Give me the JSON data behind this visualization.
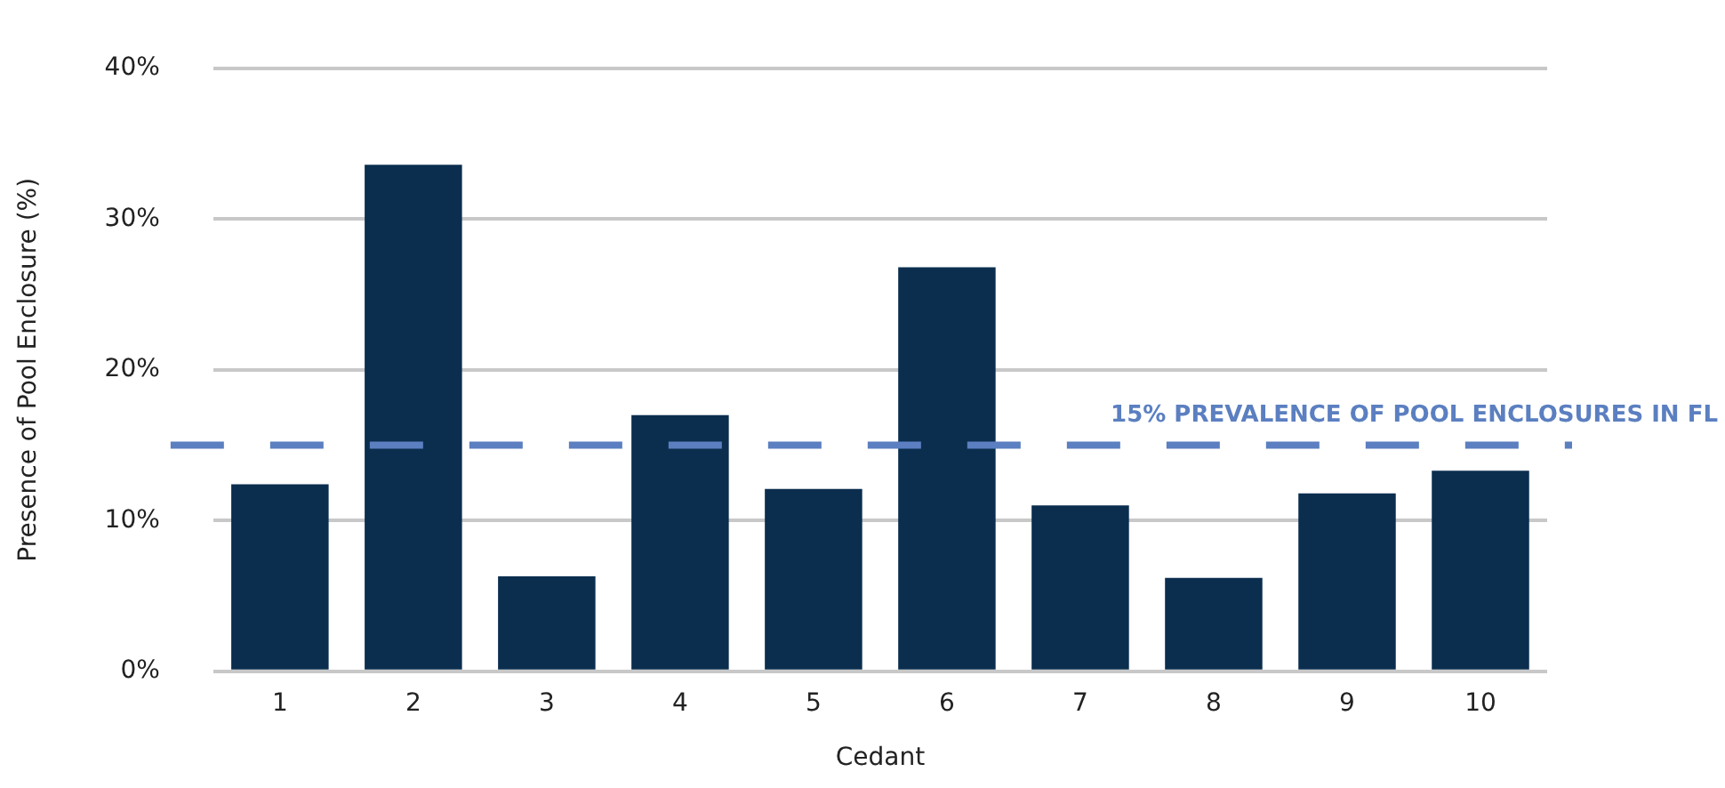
{
  "chart_data": {
    "type": "bar",
    "xlabel": "Cedant",
    "ylabel": "Presence of Pool Enclosure (%)",
    "categories": [
      "1",
      "2",
      "3",
      "4",
      "5",
      "6",
      "7",
      "8",
      "9",
      "10"
    ],
    "values": [
      12.4,
      33.6,
      6.3,
      17.0,
      12.1,
      26.8,
      11.0,
      6.2,
      11.8,
      13.3
    ],
    "color": "#0b2e4f",
    "ylim": [
      0,
      40
    ],
    "yticks": [
      {
        "value": 0,
        "label": "0%"
      },
      {
        "value": 10,
        "label": "10%"
      },
      {
        "value": 20,
        "label": "20%"
      },
      {
        "value": 30,
        "label": "30%"
      },
      {
        "value": 40,
        "label": "40%"
      }
    ],
    "grid": "y",
    "legend": false,
    "ref_lines": [
      {
        "axis": "y",
        "value": 15,
        "label": "15% PREVALENCE OF POOL ENCLOSURES IN FL",
        "color": "#5b7fc0",
        "line_style": "dashed"
      }
    ]
  }
}
